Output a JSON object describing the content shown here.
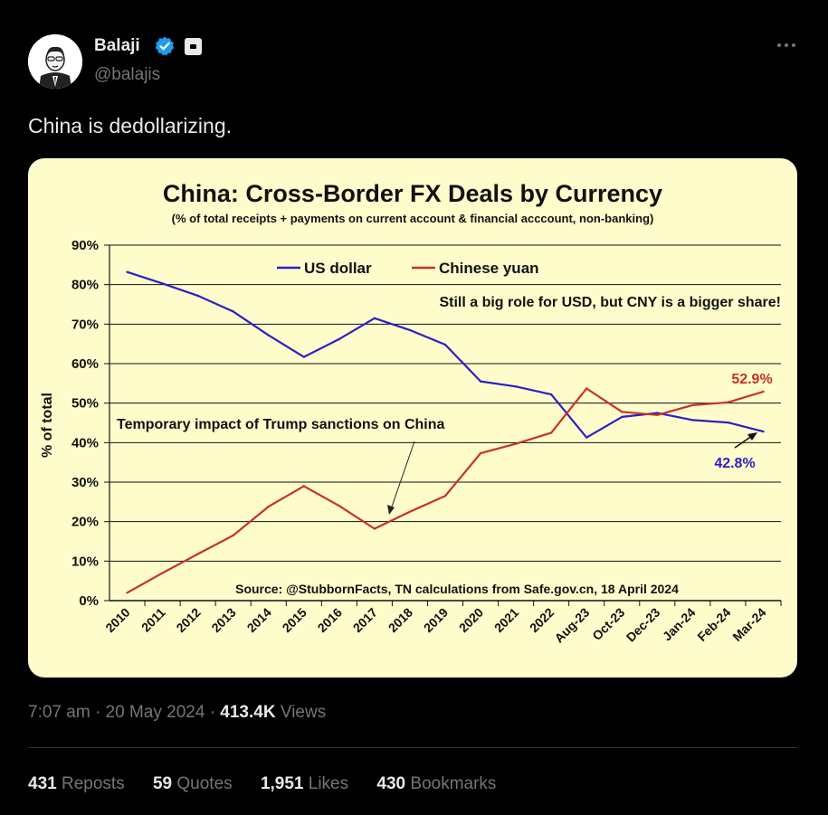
{
  "author": {
    "name": "Balaji",
    "handle": "@balajis"
  },
  "tweet": {
    "text": "China is dedollarizing.",
    "time": "7:07 am",
    "separator": "·",
    "date": "20 May 2024",
    "views_count": "413.4K",
    "views_label": "Views"
  },
  "stats": {
    "reposts_count": "431",
    "reposts_label": "Reposts",
    "quotes_count": "59",
    "quotes_label": "Quotes",
    "likes_count": "1,951",
    "likes_label": "Likes",
    "bookmarks_count": "430",
    "bookmarks_label": "Bookmarks"
  },
  "colors": {
    "background": "#000000",
    "card_background": "#fffccc",
    "usd_line": "#2b1fc7",
    "cny_line": "#c9302c",
    "verified": "#1d9bf0"
  },
  "icons": [
    "verified-badge-icon",
    "affiliate-badge-icon",
    "more-options-icon"
  ],
  "chart_data": {
    "type": "line",
    "title": "China: Cross-Border FX Deals by Currency",
    "subtitle": "(% of total receipts + payments on current account & financial acccount, non-banking)",
    "ylabel": "% of total",
    "ylim": [
      0,
      90
    ],
    "yticks": [
      0,
      10,
      20,
      30,
      40,
      50,
      60,
      70,
      80,
      90
    ],
    "ytick_labels": [
      "0%",
      "10%",
      "20%",
      "30%",
      "40%",
      "50%",
      "60%",
      "70%",
      "80%",
      "90%"
    ],
    "grid": true,
    "legend_position": "top",
    "categories": [
      "2010",
      "2011",
      "2012",
      "2013",
      "2014",
      "2015",
      "2016",
      "2017",
      "2018",
      "2019",
      "2020",
      "2021",
      "2022",
      "Aug-23",
      "Oct-23",
      "Dec-23",
      "Jan-24",
      "Feb-24",
      "Mar-24"
    ],
    "series": [
      {
        "name": "US dollar",
        "color": "#2b1fc7",
        "values": [
          83.2,
          80.3,
          77.2,
          73.2,
          67.2,
          61.7,
          66.2,
          71.5,
          68.5,
          64.8,
          55.5,
          54.2,
          52.2,
          41.3,
          46.5,
          47.5,
          45.7,
          45.1,
          42.8
        ]
      },
      {
        "name": "Chinese yuan",
        "color": "#c9302c",
        "values": [
          2.0,
          7.0,
          11.8,
          16.5,
          23.8,
          29.0,
          24.0,
          18.2,
          22.5,
          26.5,
          37.3,
          39.7,
          42.5,
          53.7,
          47.8,
          47.0,
          49.5,
          50.2,
          52.9
        ]
      }
    ],
    "annotations": {
      "headline": "Still a big role for USD, but CNY is a bigger share!",
      "sanctions": "Temporary impact of Trump sanctions on China",
      "source": "Source: @StubbornFacts, TN calculations from Safe.gov.cn, 18 April 2024",
      "cny_last": "52.9%",
      "usd_last": "42.8%"
    }
  }
}
